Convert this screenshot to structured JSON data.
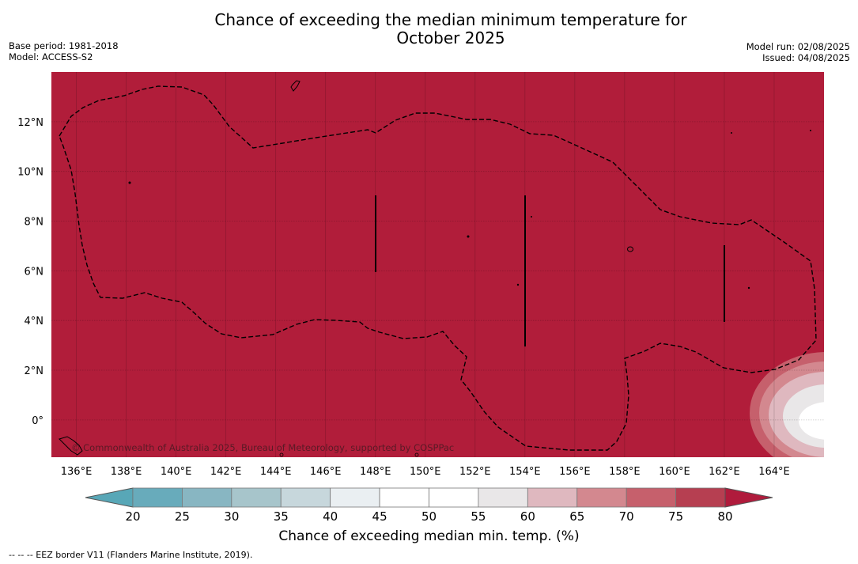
{
  "title_line1": "Chance of exceeding the median minimum temperature for",
  "title_line2": "October 2025",
  "meta_left": {
    "base_period": "Base period: 1981-2018",
    "model": "Model: ACCESS-S2"
  },
  "meta_right": {
    "model_run": "Model run: 02/08/2025",
    "issued": "Issued: 04/08/2025"
  },
  "map": {
    "background_color": "#b11d3a",
    "lon_range": [
      135,
      166
    ],
    "lat_range": [
      -1.5,
      14
    ],
    "lon_ticks": [
      "136°E",
      "138°E",
      "140°E",
      "142°E",
      "144°E",
      "146°E",
      "148°E",
      "150°E",
      "152°E",
      "154°E",
      "156°E",
      "158°E",
      "160°E",
      "162°E",
      "164°E"
    ],
    "lat_ticks": [
      "12°N",
      "10°N",
      "8°N",
      "6°N",
      "4°N",
      "2°N",
      "0°"
    ],
    "copyright": "© Commonwealth of Australia 2025, Bureau of Meteorology, supported by COSPPac"
  },
  "colorbar": {
    "label": "Chance of exceeding median min. temp. (%)",
    "ticks": [
      "20",
      "25",
      "30",
      "35",
      "40",
      "45",
      "50",
      "55",
      "60",
      "65",
      "70",
      "75",
      "80"
    ],
    "colors": [
      "#68abbb",
      "#88b6c2",
      "#a7c5cb",
      "#c7d7dc",
      "#eaeff2",
      "#ffffff",
      "#ffffff",
      "#e9e7e8",
      "#dfb8bf",
      "#d3888f",
      "#c6606c",
      "#b63f51"
    ],
    "under_color": "#58a7b7",
    "over_color": "#b01b3c"
  },
  "eez_note": "-- -- -- EEZ border V11 (Flanders Marine Institute, 2019)."
}
